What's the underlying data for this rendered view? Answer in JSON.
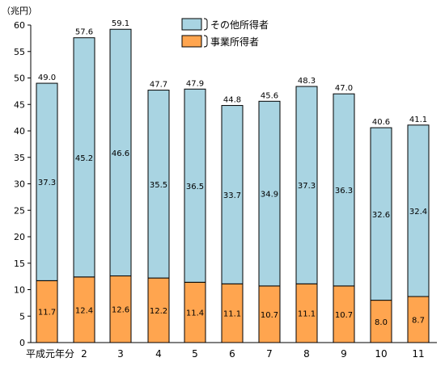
{
  "chart_data": {
    "type": "bar",
    "stacked": true,
    "unit_label": "（兆円）",
    "categories": [
      "平成元年分",
      "2",
      "3",
      "4",
      "5",
      "6",
      "7",
      "8",
      "9",
      "10",
      "11"
    ],
    "series": [
      {
        "name": "事業所得者",
        "color": "#ffa54f",
        "values": [
          11.7,
          12.4,
          12.6,
          12.2,
          11.4,
          11.1,
          10.7,
          11.1,
          10.7,
          8.0,
          8.7
        ],
        "labels": [
          "11.7",
          "12.4",
          "12.6",
          "12.2",
          "11.4",
          "11.1",
          "10.7",
          "11.1",
          "10.7",
          "8.0",
          "8.7"
        ]
      },
      {
        "name": "その他所得者",
        "color": "#a9d4e2",
        "values": [
          37.3,
          45.2,
          46.6,
          35.5,
          36.5,
          33.7,
          34.9,
          37.3,
          36.3,
          32.6,
          32.4
        ],
        "labels": [
          "37.3",
          "45.2",
          "46.6",
          "35.5",
          "36.5",
          "33.7",
          "34.9",
          "37.3",
          "36.3",
          "32.6",
          "32.4"
        ]
      }
    ],
    "totals": [
      49.0,
      57.6,
      59.1,
      47.7,
      47.9,
      44.8,
      45.6,
      48.3,
      47.0,
      40.6,
      41.1
    ],
    "total_labels": [
      "49.0",
      "57.6",
      "59.1",
      "47.7",
      "47.9",
      "44.8",
      "45.6",
      "48.3",
      "47.0",
      "40.6",
      "41.1"
    ],
    "ylim": [
      0,
      60
    ],
    "yticks": [
      "0",
      "5",
      "10",
      "15",
      "20",
      "25",
      "30",
      "35",
      "40",
      "45",
      "50",
      "55",
      "60"
    ],
    "legend": {
      "position": "top",
      "entries": [
        "その他所得者",
        "事業所得者"
      ]
    },
    "grid": false
  }
}
